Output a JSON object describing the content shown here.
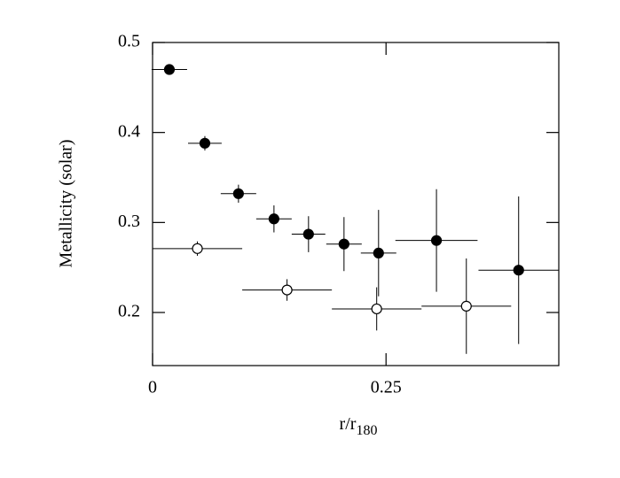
{
  "chart_data": {
    "type": "scatter",
    "xlabel": "r/r",
    "xlabel_sub": "180",
    "ylabel": "Metallicity (solar)",
    "xlim": [
      0,
      0.435
    ],
    "xticks": [
      0,
      0.25
    ],
    "ylim": [
      0.141,
      0.5
    ],
    "yticks": [
      0.2,
      0.3,
      0.4,
      0.5
    ],
    "series": [
      {
        "color": "#000000",
        "marker": "filled",
        "x": [
          0.018,
          0.056,
          0.092,
          0.13,
          0.167,
          0.205,
          0.242,
          0.304,
          0.392
        ],
        "values": [
          0.47,
          0.388,
          0.332,
          0.304,
          0.287,
          0.276,
          0.266,
          0.28,
          0.247
        ],
        "xerr": [
          0.019,
          0.018,
          0.019,
          0.019,
          0.018,
          0.019,
          0.019,
          0.044,
          0.043
        ],
        "yerr": [
          0.005,
          0.008,
          0.01,
          0.015,
          0.02,
          0.03,
          0.048,
          0.057,
          0.082
        ]
      },
      {
        "color": "#000000",
        "marker": "open",
        "x": [
          0.048,
          0.144,
          0.24,
          0.336
        ],
        "values": [
          0.271,
          0.225,
          0.204,
          0.207
        ],
        "xerr": [
          0.048,
          0.048,
          0.048,
          0.048
        ],
        "yerr": [
          0.008,
          0.012,
          0.024,
          0.053
        ]
      }
    ]
  }
}
